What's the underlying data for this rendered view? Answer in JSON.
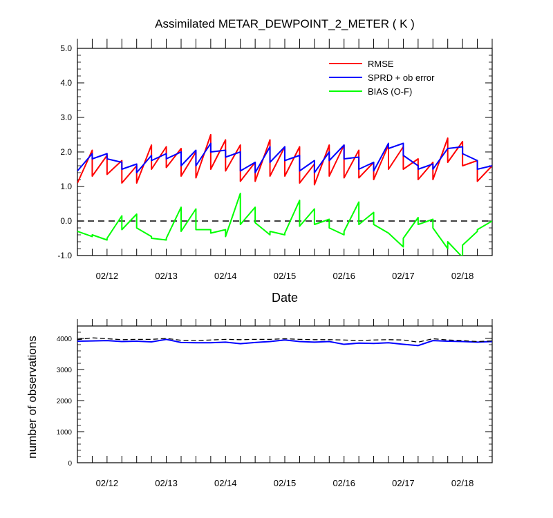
{
  "chart_data": [
    {
      "type": "line",
      "title": "Assimilated METAR_DEWPOINT_2_METER ( K )",
      "xlabel": "Date",
      "ylabel": "",
      "ylim": [
        -1.0,
        5.0
      ],
      "yticks": [
        "-1.0",
        "0.0",
        "1.0",
        "2.0",
        "3.0",
        "4.0",
        "5.0"
      ],
      "xticks": [
        "02/12",
        "02/13",
        "02/14",
        "02/15",
        "02/16",
        "02/17",
        "02/18"
      ],
      "legend_position": "top-right",
      "series": [
        {
          "name": "RMSE",
          "color": "#ff0000",
          "points": [
            [
              0.0,
              1.1
            ],
            [
              0.25,
              2.05
            ],
            [
              0.25,
              1.3
            ],
            [
              0.5,
              1.9
            ],
            [
              0.5,
              1.35
            ],
            [
              0.75,
              1.75
            ],
            [
              0.75,
              1.1
            ],
            [
              1.0,
              1.6
            ],
            [
              1.0,
              1.1
            ],
            [
              1.25,
              2.2
            ],
            [
              1.25,
              1.5
            ],
            [
              1.5,
              2.15
            ],
            [
              1.5,
              1.55
            ],
            [
              1.75,
              2.1
            ],
            [
              1.75,
              1.3
            ],
            [
              2.0,
              2.0
            ],
            [
              2.0,
              1.25
            ],
            [
              2.25,
              2.5
            ],
            [
              2.25,
              1.5
            ],
            [
              2.5,
              2.35
            ],
            [
              2.5,
              1.45
            ],
            [
              2.75,
              2.2
            ],
            [
              2.75,
              1.15
            ],
            [
              3.0,
              1.7
            ],
            [
              3.0,
              1.15
            ],
            [
              3.25,
              2.35
            ],
            [
              3.25,
              1.3
            ],
            [
              3.5,
              2.15
            ],
            [
              3.5,
              1.3
            ],
            [
              3.75,
              2.15
            ],
            [
              3.75,
              1.1
            ],
            [
              4.0,
              1.65
            ],
            [
              4.0,
              1.05
            ],
            [
              4.25,
              2.2
            ],
            [
              4.25,
              1.3
            ],
            [
              4.5,
              2.2
            ],
            [
              4.5,
              1.25
            ],
            [
              4.75,
              2.05
            ],
            [
              4.75,
              1.25
            ],
            [
              5.0,
              1.7
            ],
            [
              5.0,
              1.2
            ],
            [
              5.25,
              2.2
            ],
            [
              5.25,
              1.5
            ],
            [
              5.5,
              2.15
            ],
            [
              5.5,
              1.5
            ],
            [
              5.75,
              1.8
            ],
            [
              5.75,
              1.2
            ],
            [
              6.0,
              1.7
            ],
            [
              6.0,
              1.2
            ],
            [
              6.25,
              2.4
            ],
            [
              6.25,
              1.7
            ],
            [
              6.5,
              2.3
            ],
            [
              6.5,
              1.6
            ],
            [
              6.75,
              1.75
            ],
            [
              6.75,
              1.15
            ],
            [
              7.0,
              1.6
            ]
          ]
        },
        {
          "name": "SPRD + ob error",
          "color": "#0000ff",
          "points": [
            [
              0.0,
              1.45
            ],
            [
              0.25,
              1.95
            ],
            [
              0.25,
              1.8
            ],
            [
              0.5,
              1.95
            ],
            [
              0.5,
              1.8
            ],
            [
              0.75,
              1.7
            ],
            [
              0.75,
              1.5
            ],
            [
              1.0,
              1.65
            ],
            [
              1.0,
              1.4
            ],
            [
              1.25,
              1.9
            ],
            [
              1.25,
              1.75
            ],
            [
              1.5,
              1.95
            ],
            [
              1.5,
              1.8
            ],
            [
              1.75,
              2.0
            ],
            [
              1.75,
              1.6
            ],
            [
              2.0,
              2.05
            ],
            [
              2.0,
              1.6
            ],
            [
              2.25,
              2.25
            ],
            [
              2.25,
              2.0
            ],
            [
              2.5,
              2.05
            ],
            [
              2.5,
              1.85
            ],
            [
              2.75,
              2.0
            ],
            [
              2.75,
              1.45
            ],
            [
              3.0,
              1.7
            ],
            [
              3.0,
              1.4
            ],
            [
              3.25,
              2.15
            ],
            [
              3.25,
              1.7
            ],
            [
              3.5,
              2.15
            ],
            [
              3.5,
              1.75
            ],
            [
              3.75,
              1.9
            ],
            [
              3.75,
              1.45
            ],
            [
              4.0,
              1.75
            ],
            [
              4.0,
              1.4
            ],
            [
              4.25,
              2.0
            ],
            [
              4.25,
              1.75
            ],
            [
              4.5,
              2.2
            ],
            [
              4.5,
              1.8
            ],
            [
              4.75,
              1.85
            ],
            [
              4.75,
              1.5
            ],
            [
              5.0,
              1.7
            ],
            [
              5.0,
              1.45
            ],
            [
              5.25,
              2.25
            ],
            [
              5.25,
              2.1
            ],
            [
              5.5,
              2.25
            ],
            [
              5.5,
              1.9
            ],
            [
              5.75,
              1.6
            ],
            [
              5.75,
              1.5
            ],
            [
              6.0,
              1.65
            ],
            [
              6.0,
              1.5
            ],
            [
              6.25,
              2.1
            ],
            [
              6.25,
              2.1
            ],
            [
              6.5,
              2.15
            ],
            [
              6.5,
              1.95
            ],
            [
              6.75,
              1.75
            ],
            [
              6.75,
              1.5
            ],
            [
              7.0,
              1.6
            ]
          ]
        },
        {
          "name": "BIAS (O-F)",
          "color": "#00ff00",
          "points": [
            [
              0.0,
              -0.3
            ],
            [
              0.25,
              -0.45
            ],
            [
              0.25,
              -0.4
            ],
            [
              0.5,
              -0.55
            ],
            [
              0.5,
              -0.5
            ],
            [
              0.75,
              0.15
            ],
            [
              0.75,
              -0.25
            ],
            [
              1.0,
              0.2
            ],
            [
              1.0,
              -0.2
            ],
            [
              1.25,
              -0.45
            ],
            [
              1.25,
              -0.5
            ],
            [
              1.5,
              -0.55
            ],
            [
              1.5,
              -0.5
            ],
            [
              1.75,
              0.4
            ],
            [
              1.75,
              -0.3
            ],
            [
              2.0,
              0.35
            ],
            [
              2.0,
              -0.25
            ],
            [
              2.25,
              -0.25
            ],
            [
              2.25,
              -0.35
            ],
            [
              2.5,
              -0.25
            ],
            [
              2.5,
              -0.45
            ],
            [
              2.75,
              0.8
            ],
            [
              2.75,
              -0.1
            ],
            [
              3.0,
              0.4
            ],
            [
              3.0,
              -0.05
            ],
            [
              3.25,
              -0.4
            ],
            [
              3.25,
              -0.3
            ],
            [
              3.5,
              -0.4
            ],
            [
              3.5,
              -0.35
            ],
            [
              3.75,
              0.6
            ],
            [
              3.75,
              -0.15
            ],
            [
              4.0,
              0.35
            ],
            [
              4.0,
              -0.1
            ],
            [
              4.25,
              0.05
            ],
            [
              4.25,
              -0.2
            ],
            [
              4.5,
              -0.4
            ],
            [
              4.5,
              -0.3
            ],
            [
              4.75,
              0.55
            ],
            [
              4.75,
              -0.1
            ],
            [
              5.0,
              0.25
            ],
            [
              5.0,
              -0.1
            ],
            [
              5.25,
              -0.35
            ],
            [
              5.25,
              -0.35
            ],
            [
              5.5,
              -0.75
            ],
            [
              5.5,
              -0.5
            ],
            [
              5.75,
              0.1
            ],
            [
              5.75,
              -0.1
            ],
            [
              6.0,
              0.05
            ],
            [
              6.0,
              -0.2
            ],
            [
              6.25,
              -0.8
            ],
            [
              6.25,
              -0.6
            ],
            [
              6.5,
              -1.05
            ],
            [
              6.5,
              -0.7
            ],
            [
              6.75,
              -0.3
            ],
            [
              6.75,
              -0.25
            ],
            [
              7.0,
              0.0
            ]
          ]
        }
      ],
      "reference_line": {
        "y": 0.0,
        "style": "dashed",
        "color": "#000000"
      }
    },
    {
      "type": "line",
      "title": "",
      "xlabel": "",
      "ylabel": "number of observations",
      "ylim": [
        0,
        4400
      ],
      "yticks": [
        "0",
        "1000",
        "2000",
        "3000",
        "4000"
      ],
      "xticks": [
        "02/12",
        "02/13",
        "02/14",
        "02/15",
        "02/16",
        "02/17",
        "02/18"
      ],
      "series": [
        {
          "name": "",
          "color": "#0000ff",
          "style": "solid",
          "points": [
            [
              0.0,
              3910
            ],
            [
              0.25,
              3920
            ],
            [
              0.5,
              3930
            ],
            [
              0.75,
              3900
            ],
            [
              1.0,
              3910
            ],
            [
              1.25,
              3890
            ],
            [
              1.5,
              3970
            ],
            [
              1.75,
              3870
            ],
            [
              2.0,
              3860
            ],
            [
              2.25,
              3860
            ],
            [
              2.5,
              3880
            ],
            [
              2.75,
              3830
            ],
            [
              3.0,
              3870
            ],
            [
              3.25,
              3900
            ],
            [
              3.5,
              3950
            ],
            [
              3.75,
              3900
            ],
            [
              4.0,
              3880
            ],
            [
              4.25,
              3900
            ],
            [
              4.5,
              3810
            ],
            [
              4.75,
              3850
            ],
            [
              5.0,
              3840
            ],
            [
              5.25,
              3860
            ],
            [
              5.5,
              3810
            ],
            [
              5.75,
              3770
            ],
            [
              6.0,
              3930
            ],
            [
              6.25,
              3910
            ],
            [
              6.5,
              3900
            ],
            [
              6.75,
              3880
            ],
            [
              7.0,
              3900
            ]
          ]
        },
        {
          "name": "",
          "color": "#000000",
          "style": "dashed",
          "points": [
            [
              0.0,
              3960
            ],
            [
              0.25,
              4020
            ],
            [
              0.5,
              3990
            ],
            [
              0.75,
              3960
            ],
            [
              1.0,
              3970
            ],
            [
              1.25,
              3970
            ],
            [
              1.5,
              4000
            ],
            [
              1.75,
              3940
            ],
            [
              2.0,
              3930
            ],
            [
              2.25,
              3950
            ],
            [
              2.5,
              3970
            ],
            [
              2.75,
              3960
            ],
            [
              3.0,
              3970
            ],
            [
              3.25,
              3970
            ],
            [
              3.5,
              3990
            ],
            [
              3.75,
              3970
            ],
            [
              4.0,
              3960
            ],
            [
              4.25,
              3960
            ],
            [
              4.5,
              3950
            ],
            [
              4.75,
              3930
            ],
            [
              5.0,
              3950
            ],
            [
              5.25,
              3960
            ],
            [
              5.5,
              3950
            ],
            [
              5.75,
              3880
            ],
            [
              6.0,
              3990
            ],
            [
              6.25,
              3950
            ],
            [
              6.5,
              3930
            ],
            [
              6.75,
              3900
            ],
            [
              7.0,
              3920
            ]
          ]
        }
      ]
    }
  ]
}
